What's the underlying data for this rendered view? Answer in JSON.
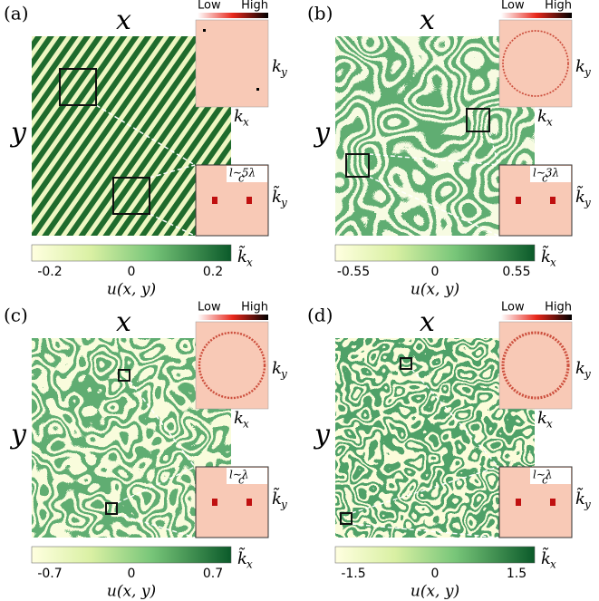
{
  "panels": [
    {
      "label": "(a)",
      "x_label": "x",
      "y_label": "y",
      "low": "Low",
      "high": "High",
      "kx": [
        "k",
        "x"
      ],
      "ky": [
        "k",
        "y"
      ],
      "kx_tilde": [
        "k̃",
        "x"
      ],
      "ky_tilde": [
        "k̃",
        "y"
      ],
      "inset_label": [
        "l∼5λ",
        "c"
      ],
      "cbar_ticks": [
        -0.2,
        0,
        0.2
      ],
      "cbar_label": "u(x, y)"
    },
    {
      "label": "(b)",
      "x_label": "x",
      "y_label": "y",
      "low": "Low",
      "high": "High",
      "kx": [
        "k",
        "x"
      ],
      "ky": [
        "k",
        "y"
      ],
      "kx_tilde": [
        "k̃",
        "x"
      ],
      "ky_tilde": [
        "k̃",
        "y"
      ],
      "inset_label": [
        "l∼3λ",
        "c"
      ],
      "cbar_ticks": [
        -0.55,
        0,
        0.55
      ],
      "cbar_label": "u(x, y)"
    },
    {
      "label": "(c)",
      "x_label": "x",
      "y_label": "y",
      "low": "Low",
      "high": "High",
      "kx": [
        "k",
        "x"
      ],
      "ky": [
        "k",
        "y"
      ],
      "kx_tilde": [
        "k̃",
        "x"
      ],
      "ky_tilde": [
        "k̃",
        "y"
      ],
      "inset_label": [
        "l∼λ",
        "c"
      ],
      "cbar_ticks": [
        -0.7,
        0,
        0.7
      ],
      "cbar_label": "u(x, y)"
    },
    {
      "label": "(d)",
      "x_label": "x",
      "y_label": "y",
      "low": "Low",
      "high": "High",
      "kx": [
        "k",
        "x"
      ],
      "ky": [
        "k",
        "y"
      ],
      "kx_tilde": [
        "k̃",
        "x"
      ],
      "ky_tilde": [
        "k̃",
        "y"
      ],
      "inset_label": [
        "l∼λ",
        "c"
      ],
      "cbar_ticks": [
        -1.5,
        0,
        1.5
      ],
      "cbar_label": "u(x, y)"
    }
  ]
}
